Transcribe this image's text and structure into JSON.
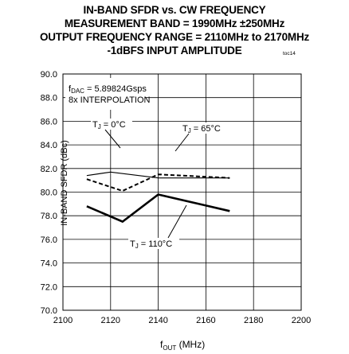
{
  "chart_data": {
    "type": "line",
    "title_lines": [
      "IN-BAND SFDR vs. CW FREQUENCY",
      "MEASUREMENT BAND = 1990MHz ±250MHz",
      "OUTPUT FREQUENCY RANGE = 2110MHz to 2170MHz",
      "-1dBFS INPUT AMPLITUDE"
    ],
    "figure_code": "toc14",
    "xlabel_main": "f",
    "xlabel_sub": "OUT",
    "xlabel_unit": " (MHz)",
    "ylabel": "IN-BAND SFDR (dBc)",
    "xlim": [
      2100,
      2200
    ],
    "ylim": [
      70,
      90
    ],
    "xticks": [
      2100,
      2120,
      2140,
      2160,
      2180,
      2200
    ],
    "xtick_labels": [
      "2100",
      "2120",
      "2140",
      "2160",
      "2180",
      "2200"
    ],
    "yticks": [
      70,
      72,
      74,
      76,
      78,
      80,
      82,
      84,
      86,
      88,
      90
    ],
    "ytick_labels": [
      "70.0",
      "72.0",
      "74.0",
      "76.0",
      "78.0",
      "80.0",
      "82.0",
      "84.0",
      "86.0",
      "88.0",
      "90.0"
    ],
    "grid": true,
    "conditions": {
      "fdac_main": "f",
      "fdac_sub": "DAC",
      "fdac_value": " = 5.89824Gsps",
      "interp": "8x INTERPOLATION"
    },
    "series": [
      {
        "name": "TJ = 0°C",
        "label_main": "T",
        "label_sub": "J",
        "label_rest": " = 0°C",
        "style": "solid-thin",
        "x": [
          2110,
          2120,
          2140,
          2170
        ],
        "y": [
          81.4,
          81.7,
          81.2,
          81.2
        ]
      },
      {
        "name": "TJ = 65°C",
        "label_main": "T",
        "label_sub": "J",
        "label_rest": " = 65°C",
        "style": "dashed",
        "x": [
          2110,
          2125,
          2140,
          2170
        ],
        "y": [
          81.1,
          80.1,
          81.5,
          81.2
        ]
      },
      {
        "name": "TJ = 110°C",
        "label_main": "T",
        "label_sub": "J",
        "label_rest": " = 110°C",
        "style": "solid-thick",
        "x": [
          2110,
          2125,
          2140,
          2170
        ],
        "y": [
          78.8,
          77.5,
          79.8,
          78.4
        ]
      }
    ]
  }
}
